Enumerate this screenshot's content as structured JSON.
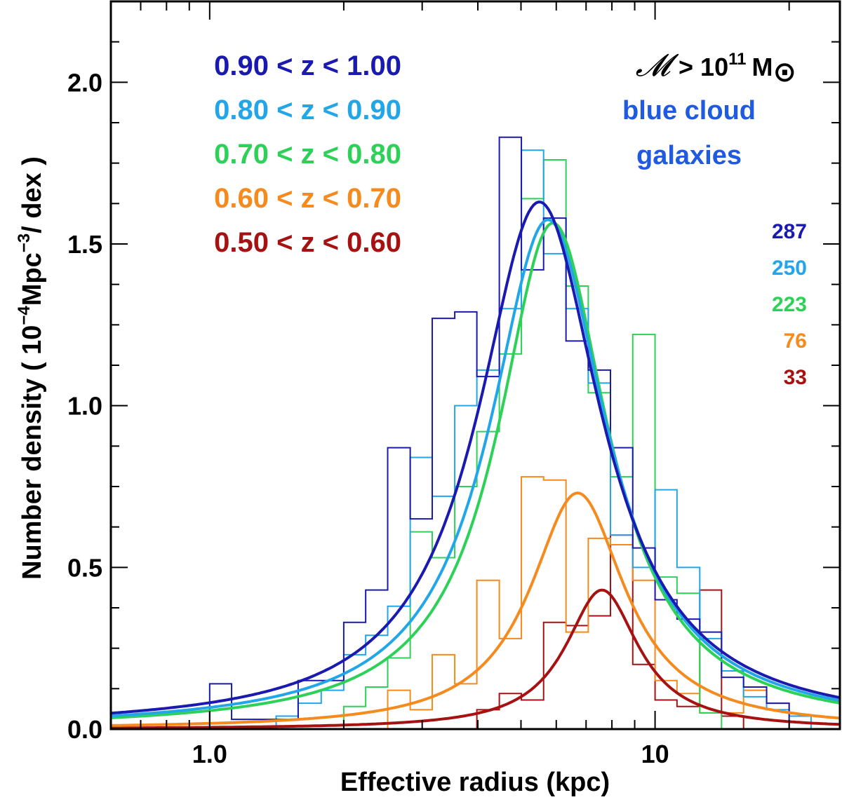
{
  "chart_data": {
    "type": "histogram-line",
    "xlabel": "Effective radius (kpc)",
    "ylabel": "Number density ( 10",
    "ylabel_exp": "−4",
    "ylabel_unit": "Mpc",
    "ylabel_unit_exp": "−3",
    "ylabel_tail": "/ dex )",
    "xscale": "log",
    "xlim": [
      0.6,
      26
    ],
    "ylim": [
      0,
      2.25
    ],
    "xticks": [
      {
        "v": 1.0,
        "label": "1.0"
      },
      {
        "v": 10,
        "label": "10"
      }
    ],
    "yticks": [
      {
        "v": 0.0,
        "label": "0.0"
      },
      {
        "v": 0.5,
        "label": "0.5"
      },
      {
        "v": 1.0,
        "label": "1.0"
      },
      {
        "v": 1.5,
        "label": "1.5"
      },
      {
        "v": 2.0,
        "label": "2.0"
      }
    ],
    "mass_label": {
      "symbol": "𝓜",
      "text": "> 10",
      "exp": "11",
      "unit": "M",
      "sun": "⊙"
    },
    "population_label": [
      "blue cloud",
      "galaxies"
    ],
    "series": [
      {
        "name": "0.90 < z < 1.00",
        "count": "287",
        "color": "#1a1ab0",
        "fit": {
          "amp": 1.63,
          "peak": 5.5,
          "width": 0.17
        },
        "edges": [
          1.0,
          1.12,
          1.58,
          1.78,
          2.0,
          2.24,
          2.51,
          2.82,
          3.16,
          3.55,
          3.98,
          4.47,
          5.01,
          5.62,
          6.31,
          7.08,
          7.94,
          8.91,
          10.0,
          11.2,
          12.6,
          14.1,
          15.8,
          17.8,
          20.0
        ],
        "values": [
          0.14,
          0.03,
          0.15,
          0.15,
          0.33,
          0.43,
          0.87,
          0.65,
          1.27,
          1.29,
          1.09,
          1.83,
          1.42,
          1.58,
          1.2,
          1.11,
          0.87,
          0.56,
          0.4,
          0.34,
          0.3,
          0.16,
          0.13,
          0.08
        ]
      },
      {
        "name": "0.80 < z < 0.90",
        "count": "250",
        "color": "#22a6e8",
        "fit": {
          "amp": 1.575,
          "peak": 5.75,
          "width": 0.16
        },
        "edges": [
          1.41,
          1.58,
          1.78,
          2.0,
          2.24,
          2.51,
          2.82,
          3.16,
          3.55,
          3.98,
          4.47,
          5.01,
          5.62,
          6.31,
          7.08,
          7.94,
          8.91,
          10.0,
          11.2,
          12.6,
          14.1,
          15.8,
          17.8,
          20.0,
          22.4
        ],
        "values": [
          0.04,
          0.08,
          0.12,
          0.23,
          0.29,
          0.38,
          0.84,
          0.72,
          1.0,
          1.11,
          1.3,
          1.79,
          1.47,
          1.3,
          1.07,
          0.6,
          0.5,
          0.74,
          0.5,
          0.28,
          0.18,
          0.1,
          0.06,
          0.04
        ]
      },
      {
        "name": "0.70 < z < 0.80",
        "count": "223",
        "color": "#2ed158",
        "fit": {
          "amp": 1.565,
          "peak": 5.9,
          "width": 0.15
        },
        "edges": [
          2.0,
          2.24,
          2.51,
          2.82,
          3.16,
          3.55,
          3.98,
          4.47,
          5.01,
          5.62,
          6.31,
          7.08,
          7.94,
          8.91,
          10.0,
          11.2,
          12.6,
          14.1
        ],
        "values": [
          0.07,
          0.13,
          0.22,
          0.61,
          0.53,
          0.75,
          0.92,
          1.16,
          1.64,
          1.76,
          1.37,
          1.04,
          0.78,
          1.22,
          0.47,
          0.42,
          0.05
        ]
      },
      {
        "name": "0.60 < z < 0.70",
        "count": "76",
        "color": "#f58a1e",
        "fit": {
          "amp": 0.73,
          "peak": 6.7,
          "width": 0.13
        },
        "edges": [
          2.51,
          2.82,
          3.16,
          3.55,
          3.98,
          4.47,
          5.01,
          5.62,
          6.31,
          7.08,
          7.94,
          8.91,
          10.0,
          11.2,
          12.6,
          14.1,
          15.8,
          17.8,
          20.0
        ],
        "values": [
          0.12,
          0.06,
          0.23,
          0.14,
          0.46,
          0.28,
          0.78,
          0.77,
          0.3,
          0.59,
          0.57,
          0.46,
          0.15,
          0.11,
          0.05,
          0.05,
          0.12,
          0.08
        ]
      },
      {
        "name": "0.50 < z < 0.60",
        "count": "33",
        "color": "#a61212",
        "fit": {
          "amp": 0.43,
          "peak": 7.6,
          "width": 0.1
        },
        "edges": [
          3.98,
          4.47,
          5.01,
          5.62,
          6.31,
          7.08,
          7.94,
          8.91,
          10.0,
          11.2,
          12.6,
          14.1,
          15.8
        ],
        "values": [
          0.06,
          0.11,
          0.09,
          0.33,
          0.32,
          0.35,
          0.6,
          0.2,
          0.09,
          0.07,
          0.43,
          0.04
        ]
      }
    ]
  }
}
